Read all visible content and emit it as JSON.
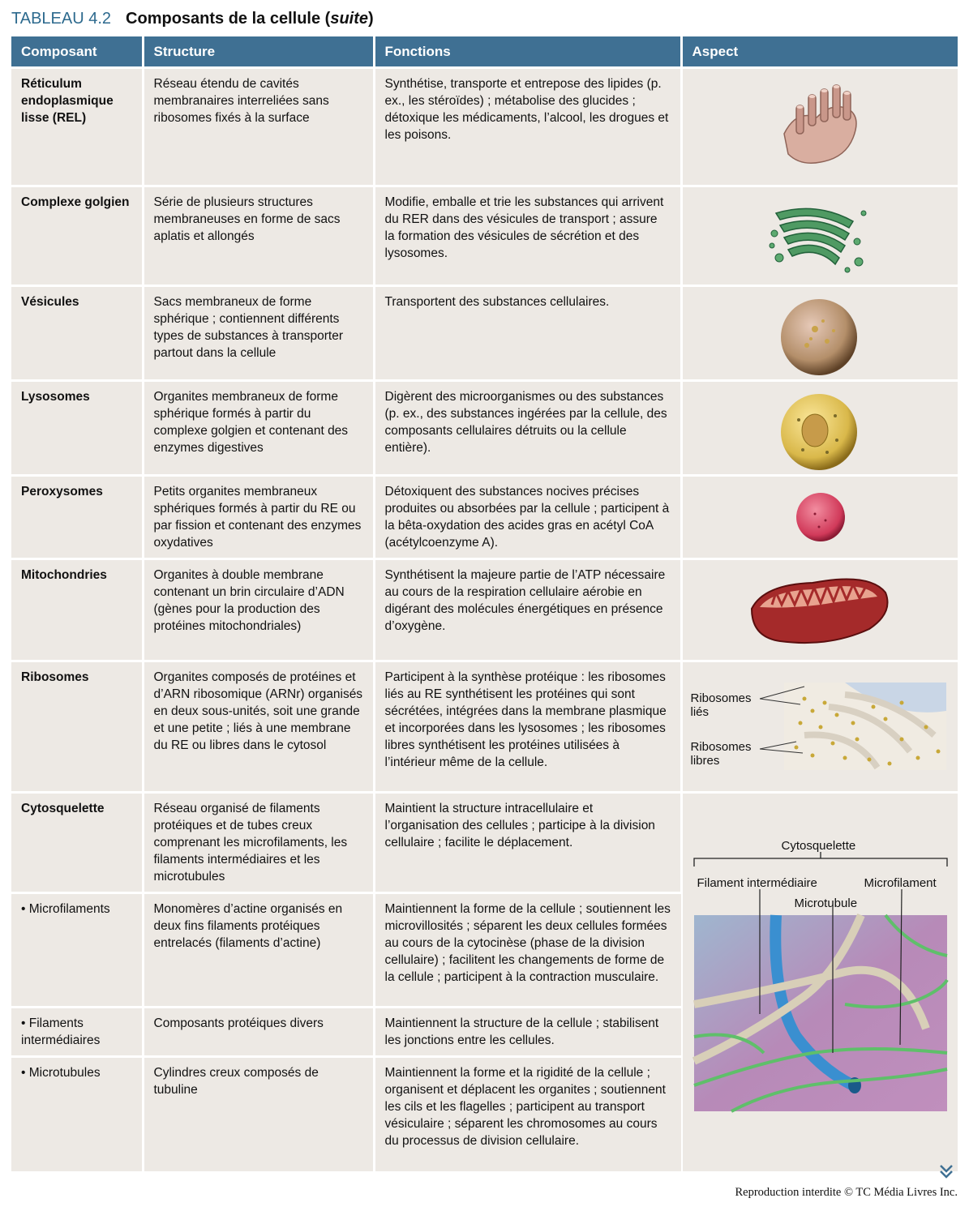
{
  "title": {
    "number": "TABLEAU 4.2",
    "text": "Composants de la cellule (",
    "italic": "suite",
    "close": ")"
  },
  "headers": {
    "composant": "Composant",
    "structure": "Structure",
    "fonctions": "Fonctions",
    "aspect": "Aspect"
  },
  "rows": [
    {
      "composant": "Réticulum endoplasmique lisse (REL)",
      "structure": "Réseau étendu de cavités membranaires interreliées sans ribosomes fixés à la surface",
      "fonctions": "Synthétise, transporte et entrepose des lipides (p. ex., les stéroïdes) ; métabolise des glucides ; détoxique les médicaments, l’alcool, les drogues et les poisons.",
      "illustration": "smooth-er-illustration"
    },
    {
      "composant": "Complexe golgien",
      "structure": "Série de plusieurs structures membraneuses en forme de sacs aplatis et allongés",
      "fonctions": "Modifie, emballe et trie les substances qui arrivent du RER dans des vésicules de transport ; assure la formation des vésicules de sécrétion et des lysosomes.",
      "illustration": "golgi-illustration"
    },
    {
      "composant": "Vésicules",
      "structure": "Sacs membraneux de forme sphérique ; contiennent différents types de substances à transporter partout dans la cellule",
      "fonctions": "Transportent des substances cellulaires.",
      "illustration": "vesicle-illustration"
    },
    {
      "composant": "Lysosomes",
      "structure": "Organites membraneux de forme sphérique formés à partir du complexe golgien et contenant des enzymes digestives",
      "fonctions": "Digèrent des microorganismes ou des substances (p. ex., des substances ingérées par la cellule, des composants cellulaires détruits ou la cellule entière).",
      "illustration": "lysosome-illustration"
    },
    {
      "composant": "Peroxysomes",
      "structure": "Petits organites membraneux sphériques formés à partir du RE ou par fission et contenant des enzymes oxydatives",
      "fonctions": "Détoxiquent des substances nocives précises produites ou absorbées par la cellule ; participent à la bêta-oxydation des acides gras en acétyl CoA (acétylcoenzyme A).",
      "illustration": "peroxisome-illustration"
    },
    {
      "composant": "Mitochondries",
      "structure": "Organites à double membrane contenant un brin circulaire d’ADN (gènes pour la production des protéines mitochondriales)",
      "fonctions": "Synthétisent la majeure partie de l’ATP nécessaire au cours de la respiration cellulaire aérobie en digérant des molécules énergétiques en présence d’oxygène.",
      "illustration": "mitochondrion-illustration"
    },
    {
      "composant": "Ribosomes",
      "structure": "Organites composés de protéines et d’ARN ribosomique (ARNr) organisés en deux sous-unités, soit une grande et une petite ; liés à une membrane du RE ou libres dans le cytosol",
      "fonctions": "Participent à la synthèse protéique : les ribosomes liés au RE synthétisent les protéines qui sont sécrétées, intégrées dans la membrane plasmique et incorporées dans les lysosomes ; les ribosomes libres synthétisent les protéines utilisées à l’intérieur même de la cellule.",
      "illustration": "ribosomes-illustration"
    },
    {
      "composant": "Cytosquelette",
      "structure": "Réseau organisé de filaments protéiques et de tubes creux comprenant les microfilaments, les filaments intermédiaires et les microtubules",
      "fonctions": "Maintient la structure intracellulaire et l’organisation des cellules ; participe à la division cellulaire ; facilite le déplacement.",
      "illustration": "cytoskeleton-illustration"
    },
    {
      "composant": "• Microfilaments",
      "structure": "Monomères d’actine organisés en deux fins filaments protéiques entrelacés (filaments d’actine)",
      "fonctions": "Maintiennent la forme de la cellule ; soutiennent les microvillosités ; séparent les deux cellules formées au cours de la cytocinèse (phase de la division cellulaire) ; facilitent les changements de forme de la cellule ; participent à la contraction musculaire."
    },
    {
      "composant": "• Filaments intermédiaires",
      "structure": "Composants protéiques divers",
      "fonctions": "Maintiennent la structure de la cellule ; stabilisent les jonctions entre les cellules."
    },
    {
      "composant": "• Microtubules",
      "structure": "Cylindres creux composés de tubuline",
      "fonctions": "Maintiennent la forme et la rigidité de la cellule ; organisent et déplacent les organites ; soutiennent les cils et les flagelles ; participent au transport vésiculaire ; séparent les chromosomes au cours du processus de division cellulaire."
    }
  ],
  "ribosome_labels": {
    "lies_1": "Ribosomes",
    "lies_2": "liés",
    "libres_1": "Ribosomes",
    "libres_2": "libres"
  },
  "cytoskeleton_labels": {
    "title": "Cytosquelette",
    "intermediate": "Filament intermédiaire",
    "microfilament": "Microfilament",
    "microtubule": "Microtubule"
  },
  "footer": "Reproduction interdite © TC Média Livres Inc.",
  "colors": {
    "header_bg": "#3f7093",
    "row_bg": "#ede9e4",
    "title_accent": "#2d6a8e"
  }
}
